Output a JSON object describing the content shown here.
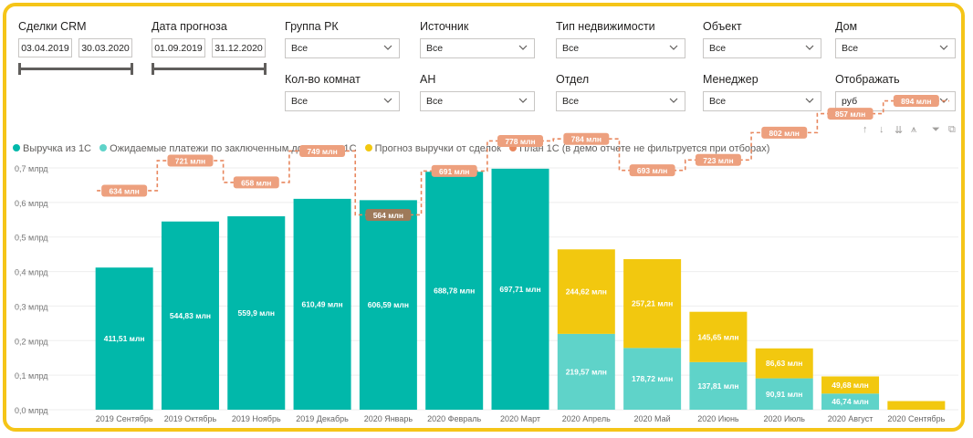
{
  "filters": {
    "crm_deals": {
      "label": "Сделки CRM",
      "from": "03.04.2019",
      "to": "30.03.2020"
    },
    "forecast_date": {
      "label": "Дата прогноза",
      "from": "01.09.2019",
      "to": "31.12.2020"
    },
    "dropdowns": [
      {
        "id": "gruppa-rk",
        "label": "Группа РК",
        "value": "Все"
      },
      {
        "id": "istochnik",
        "label": "Источник",
        "value": "Все"
      },
      {
        "id": "tip-nedvizhimosti",
        "label": "Тип недвижимости",
        "value": "Все"
      },
      {
        "id": "obekt",
        "label": "Объект",
        "value": "Все"
      },
      {
        "id": "dom",
        "label": "Дом",
        "value": "Все"
      },
      {
        "id": "kol-vo-komnat",
        "label": "Кол-во комнат",
        "value": "Все"
      },
      {
        "id": "an",
        "label": "АН",
        "value": "Все"
      },
      {
        "id": "otdel",
        "label": "Отдел",
        "value": "Все"
      },
      {
        "id": "menedzher",
        "label": "Менеджер",
        "value": "Все"
      },
      {
        "id": "otobrazhat",
        "label": "Отображать",
        "value": "руб"
      }
    ]
  },
  "toolbar_icons": [
    "arrow-up-icon",
    "arrow-down-icon",
    "double-arrow-down-icon",
    "expand-hierarchy-icon",
    "filter-icon",
    "focus-mode-icon"
  ],
  "colors": {
    "revenue": "#01b8aa",
    "expected": "#5fd3c9",
    "forecast": "#f2c80f",
    "plan": "#e8875e",
    "plan_label_bg": "#eda07e",
    "plan_label_dark": "#9e7a5a",
    "frame": "#f5c518"
  },
  "chart_data": {
    "type": "bar",
    "stacked": true,
    "categories": [
      "2019 Сентябрь",
      "2019 Октябрь",
      "2019 Ноябрь",
      "2019 Декабрь",
      "2020 Январь",
      "2020 Февраль",
      "2020 Март",
      "2020 Апрель",
      "2020 Май",
      "2020 Июнь",
      "2020 Июль",
      "2020 Август",
      "2020 Сентябрь"
    ],
    "series": [
      {
        "name": "Выручка из 1С",
        "color": "#01b8aa",
        "values": [
          411.51,
          544.83,
          559.9,
          610.49,
          606.59,
          688.78,
          697.71,
          0,
          0,
          0,
          0,
          0,
          0
        ],
        "labels": [
          "411,51 млн",
          "544,83 млн",
          "559,9 млн",
          "610,49 млн",
          "606,59 млн",
          "688,78 млн",
          "697,71 млн",
          "",
          "",
          "",
          "",
          "",
          ""
        ]
      },
      {
        "name": "Ожидаемые платежи по заключенным договорам 1С",
        "color": "#5fd3c9",
        "values": [
          0,
          0,
          0,
          0,
          0,
          0,
          0,
          219.57,
          178.72,
          137.81,
          90.91,
          46.74,
          0
        ],
        "labels": [
          "",
          "",
          "",
          "",
          "",
          "",
          "",
          "219,57 млн",
          "178,72 млн",
          "137,81 млн",
          "90,91 млн",
          "46,74 млн",
          ""
        ]
      },
      {
        "name": "Прогноз выручки от сделок",
        "color": "#f2c80f",
        "values": [
          0,
          0,
          0,
          0,
          0,
          0,
          0,
          244.62,
          257.21,
          145.65,
          86.63,
          49.68,
          25
        ],
        "labels": [
          "",
          "",
          "",
          "",
          "",
          "",
          "",
          "244,62 млн",
          "257,21 млн",
          "145,65 млн",
          "86,63 млн",
          "49,68 млн",
          ""
        ]
      }
    ],
    "plan": {
      "name": "План 1С (в демо отчете не фильтруется при отборах)",
      "values": [
        634,
        721,
        658,
        749,
        564,
        691,
        778,
        784,
        693,
        723,
        802,
        857,
        894
      ],
      "labels": [
        "634 млн",
        "721 млн",
        "658 млн",
        "749 млн",
        "564 млн",
        "691 млн",
        "778 млн",
        "784 млн",
        "693 млн",
        "723 млн",
        "802 млн",
        "857 млн",
        "894 млн"
      ]
    },
    "y_ticks": [
      "0,0 млрд",
      "0,1 млрд",
      "0,2 млрд",
      "0,3 млрд",
      "0,4 млрд",
      "0,5 млрд",
      "0,6 млрд",
      "0,7 млрд"
    ],
    "ylim": [
      0,
      700
    ],
    "xlabel": "",
    "ylabel": "",
    "legend": "top-left",
    "grid": true
  }
}
